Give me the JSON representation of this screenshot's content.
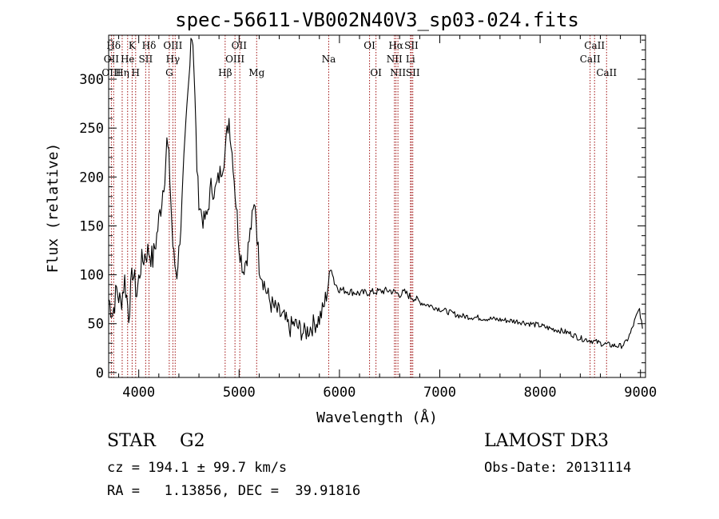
{
  "chart_data": {
    "type": "line",
    "title": "spec-56611-VB002N40V3_sp03-024.fits",
    "xlabel": "Wavelength (Å)",
    "ylabel": "Flux (relative)",
    "xlim": [
      3700,
      9050
    ],
    "ylim": [
      -5,
      345
    ],
    "x_ticks": [
      4000,
      5000,
      6000,
      7000,
      8000,
      9000
    ],
    "y_ticks": [
      0,
      50,
      100,
      150,
      200,
      250,
      300
    ],
    "series": [
      {
        "name": "flux",
        "x": [
          3700,
          3740,
          3780,
          3820,
          3860,
          3900,
          3940,
          3980,
          4020,
          4060,
          4100,
          4140,
          4180,
          4220,
          4260,
          4280,
          4300,
          4320,
          4340,
          4360,
          4380,
          4400,
          4420,
          4450,
          4480,
          4500,
          4520,
          4540,
          4560,
          4580,
          4600,
          4640,
          4680,
          4720,
          4760,
          4800,
          4840,
          4860,
          4880,
          4900,
          4920,
          4940,
          4960,
          4980,
          5000,
          5040,
          5080,
          5120,
          5160,
          5180,
          5200,
          5240,
          5280,
          5320,
          5360,
          5400,
          5450,
          5500,
          5550,
          5600,
          5650,
          5700,
          5750,
          5800,
          5840,
          5880,
          5900,
          5920,
          5950,
          6000,
          6100,
          6200,
          6300,
          6400,
          6500,
          6550,
          6600,
          6650,
          6700,
          6750,
          6800,
          7000,
          7200,
          7400,
          7600,
          7800,
          8000,
          8100,
          8200,
          8300,
          8400,
          8500,
          8600,
          8700,
          8800,
          8850,
          8900,
          8950,
          8990,
          9020
        ],
        "y": [
          75,
          60,
          85,
          70,
          95,
          60,
          105,
          80,
          110,
          120,
          125,
          115,
          140,
          170,
          205,
          235,
          220,
          175,
          130,
          110,
          100,
          125,
          150,
          215,
          270,
          300,
          345,
          340,
          280,
          210,
          175,
          155,
          160,
          190,
          185,
          200,
          215,
          225,
          245,
          260,
          235,
          215,
          185,
          160,
          130,
          105,
          120,
          150,
          175,
          140,
          110,
          95,
          80,
          70,
          65,
          60,
          55,
          45,
          50,
          45,
          40,
          45,
          50,
          55,
          65,
          85,
          100,
          108,
          92,
          85,
          83,
          81,
          82,
          83,
          84,
          82,
          80,
          82,
          78,
          76,
          72,
          65,
          58,
          56,
          54,
          52,
          48,
          45,
          43,
          40,
          35,
          33,
          30,
          28,
          27,
          30,
          40,
          55,
          65,
          45
        ]
      }
    ],
    "line_labels": [
      {
        "label": "Hδ",
        "x": 3750,
        "row": 1
      },
      {
        "label": "K",
        "x": 3934,
        "row": 1
      },
      {
        "label": "Hδ",
        "x": 4102,
        "row": 1
      },
      {
        "label": "OIII",
        "x": 4340,
        "row": 1
      },
      {
        "label": "OII",
        "x": 5000,
        "row": 1
      },
      {
        "label": "OI",
        "x": 6300,
        "row": 1
      },
      {
        "label": "Hα",
        "x": 6563,
        "row": 1
      },
      {
        "label": "SII",
        "x": 6717,
        "row": 1
      },
      {
        "label": "CaII",
        "x": 8542,
        "row": 1
      },
      {
        "label": "OII",
        "x": 3727,
        "row": 2
      },
      {
        "label": "He",
        "x": 3889,
        "row": 2
      },
      {
        "label": "SII",
        "x": 4069,
        "row": 2
      },
      {
        "label": "Hγ",
        "x": 4340,
        "row": 2
      },
      {
        "label": "OIII",
        "x": 4959,
        "row": 2
      },
      {
        "label": "Na",
        "x": 5893,
        "row": 2
      },
      {
        "label": "NII",
        "x": 6548,
        "row": 2
      },
      {
        "label": "Li",
        "x": 6708,
        "row": 2
      },
      {
        "label": "CaII",
        "x": 8498,
        "row": 2
      },
      {
        "label": "OIII",
        "x": 3727,
        "row": 3
      },
      {
        "label": "Hη",
        "x": 3835,
        "row": 3
      },
      {
        "label": "H",
        "x": 3969,
        "row": 3
      },
      {
        "label": "G",
        "x": 4304,
        "row": 3
      },
      {
        "label": "Hβ",
        "x": 4861,
        "row": 3
      },
      {
        "label": "Mg",
        "x": 5175,
        "row": 3
      },
      {
        "label": "OI",
        "x": 6364,
        "row": 3
      },
      {
        "label": "NII",
        "x": 6583,
        "row": 3
      },
      {
        "label": "SII",
        "x": 6731,
        "row": 3
      },
      {
        "label": "CaII",
        "x": 8662,
        "row": 3
      }
    ],
    "marker_lines_x": [
      3727,
      3750,
      3835,
      3889,
      3934,
      3969,
      4069,
      4102,
      4304,
      4340,
      4363,
      4861,
      4959,
      5007,
      5175,
      5893,
      6300,
      6364,
      6548,
      6563,
      6583,
      6708,
      6717,
      6731,
      8498,
      8542,
      8662
    ]
  },
  "info": {
    "object": "STAR",
    "subclass": "G2",
    "survey": "LAMOST DR3",
    "redshift": "cz = 194.1 ± 99.7 km/s",
    "obs_date": "Obs-Date: 20131114",
    "coords": "RA =   1.13856, DEC =  39.91816"
  },
  "colors": {
    "marker": "#a01010",
    "line": "#000000"
  }
}
